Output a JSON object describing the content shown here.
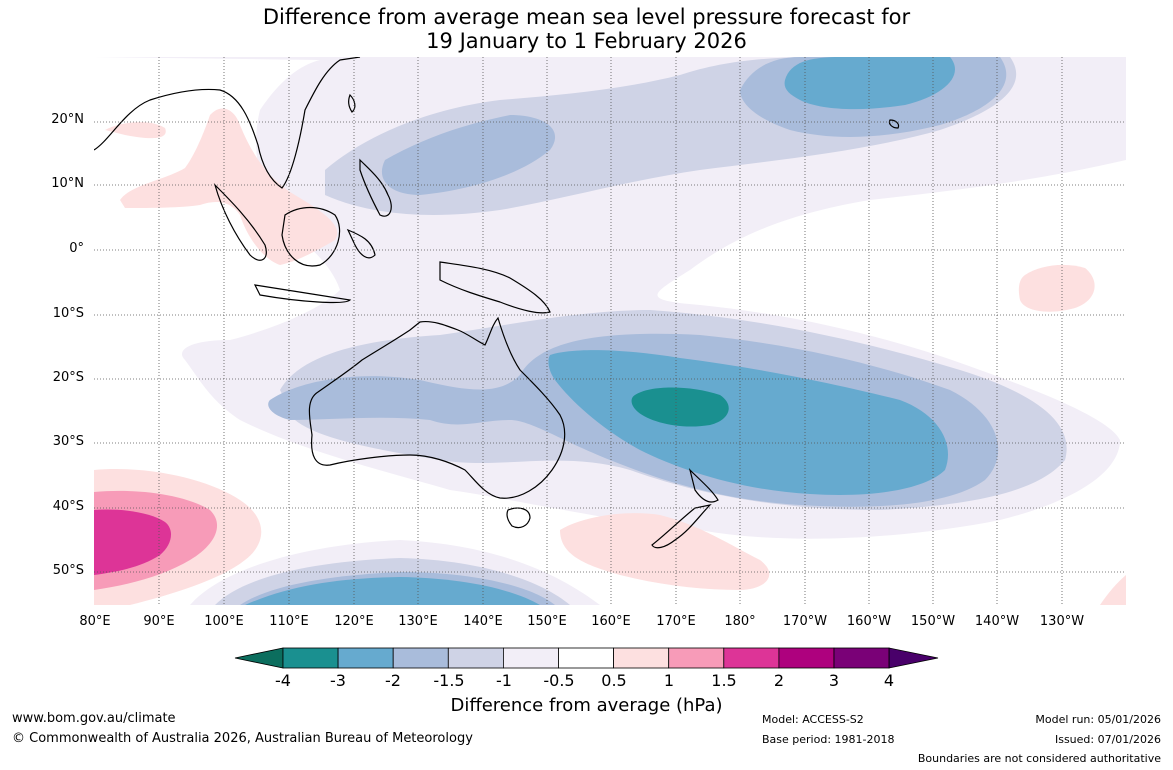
{
  "title_line1": "Difference from average mean sea level pressure forecast for",
  "title_line2": "19 January to 1 February 2026",
  "lat_labels": [
    "20°N",
    "10°N",
    "0°",
    "10°S",
    "20°S",
    "30°S",
    "40°S",
    "50°S"
  ],
  "lon_labels": [
    "80°E",
    "90°E",
    "100°E",
    "110°E",
    "120°E",
    "130°E",
    "140°E",
    "150°E",
    "160°E",
    "170°E",
    "180°",
    "170°W",
    "160°W",
    "150°W",
    "140°W",
    "130°W"
  ],
  "colorbar": {
    "title": "Difference from average (hPa)",
    "ticks": [
      "-4",
      "-3",
      "-2",
      "-1.5",
      "-1",
      "-0.5",
      "0.5",
      "1",
      "1.5",
      "2",
      "3",
      "4"
    ],
    "colors": [
      "#0c6e5e",
      "#1a9090",
      "#66aacf",
      "#a9bcdb",
      "#cfd3e6",
      "#f2eef7",
      "#ffffff",
      "#fde0e0",
      "#f79bb8",
      "#dd3497",
      "#ae017e",
      "#7a0177",
      "#49006a"
    ]
  },
  "map_fields": {
    "variable": "mean sea level pressure anomaly",
    "units": "hPa",
    "lon_range": [
      "80°E",
      "130°W"
    ],
    "lat_range": [
      "55°S",
      "30°N"
    ]
  },
  "footer": {
    "website": "www.bom.gov.au/climate",
    "copyright": "© Commonwealth of Australia 2026, Australian Bureau of Meteorology",
    "model": "Model: ACCESS-S2",
    "base_period": "Base period: 1981-2018",
    "model_run": "Model run: 05/01/2026",
    "issued": "Issued: 07/01/2026",
    "disclaimer": "Boundaries are not considered authoritative"
  }
}
